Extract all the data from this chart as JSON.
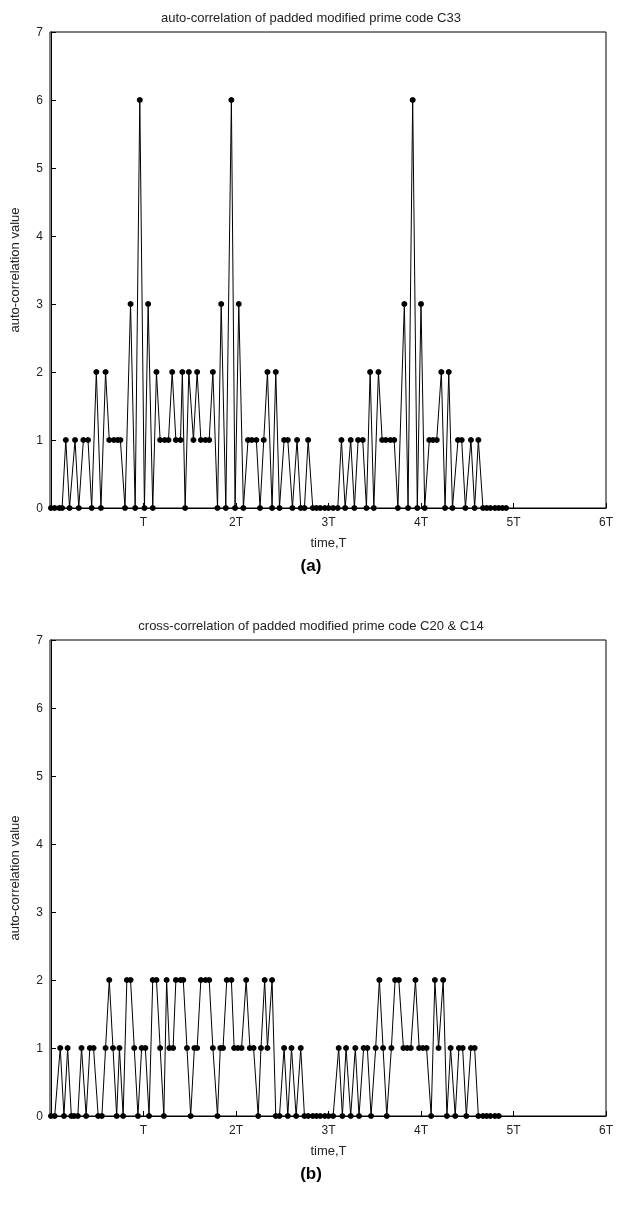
{
  "chart_data": [
    {
      "type": "line",
      "title": "auto-correlation of padded modified prime code C33",
      "subtitle": "(a)",
      "xlabel": "time,T",
      "ylabel": "auto-correlation value",
      "xlim": [
        0,
        6
      ],
      "xticks": [
        {
          "value": 1,
          "label": "T"
        },
        {
          "value": 2,
          "label": "2T"
        },
        {
          "value": 3,
          "label": "3T"
        },
        {
          "value": 4,
          "label": "4T"
        },
        {
          "value": 5,
          "label": "5T"
        },
        {
          "value": 6,
          "label": "6T"
        }
      ],
      "ylim": [
        0,
        7
      ],
      "yticks": [
        0,
        1,
        2,
        3,
        4,
        5,
        6,
        7
      ],
      "grid": false,
      "marker": "circle",
      "line_style": "solid",
      "series": [
        {
          "color": "#000000",
          "x": [
            0.0,
            0.04,
            0.09,
            0.12,
            0.16,
            0.2,
            0.26,
            0.3,
            0.35,
            0.4,
            0.44,
            0.49,
            0.54,
            0.59,
            0.63,
            0.68,
            0.72,
            0.75,
            0.8,
            0.86,
            0.91,
            0.96,
            1.01,
            1.05,
            1.1,
            1.14,
            1.18,
            1.23,
            1.27,
            1.31,
            1.35,
            1.4,
            1.42,
            1.45,
            1.49,
            1.54,
            1.58,
            1.62,
            1.67,
            1.71,
            1.75,
            1.8,
            1.84,
            1.89,
            1.95,
            1.99,
            2.03,
            2.08,
            2.13,
            2.17,
            2.22,
            2.26,
            2.3,
            2.34,
            2.39,
            2.43,
            2.47,
            2.52,
            2.56,
            2.61,
            2.66,
            2.7,
            2.74,
            2.78,
            2.83,
            2.87,
            2.91,
            2.96,
            3.0,
            3.05,
            3.1,
            3.14,
            3.18,
            3.24,
            3.28,
            3.32,
            3.37,
            3.41,
            3.45,
            3.49,
            3.54,
            3.58,
            3.62,
            3.67,
            3.71,
            3.75,
            3.82,
            3.86,
            3.91,
            3.96,
            4.0,
            4.04,
            4.09,
            4.13,
            4.17,
            4.22,
            4.26,
            4.3,
            4.34,
            4.4,
            4.44,
            4.48,
            4.54,
            4.58,
            4.62,
            4.67,
            4.71,
            4.75,
            4.8,
            4.84,
            4.88,
            4.92
          ],
          "values": [
            0,
            0,
            0,
            0,
            1,
            0,
            1,
            0,
            1,
            1,
            0,
            2,
            0,
            2,
            1,
            1,
            1,
            1,
            0,
            3,
            0,
            6,
            0,
            3,
            0,
            2,
            1,
            1,
            1,
            2,
            1,
            1,
            2,
            0,
            2,
            1,
            2,
            1,
            1,
            1,
            2,
            0,
            3,
            0,
            6,
            0,
            3,
            0,
            1,
            1,
            1,
            0,
            1,
            2,
            0,
            2,
            0,
            1,
            1,
            0,
            1,
            0,
            0,
            1,
            0,
            0,
            0,
            0,
            0,
            0,
            0,
            1,
            0,
            1,
            0,
            1,
            1,
            0,
            2,
            0,
            2,
            1,
            1,
            1,
            1,
            0,
            3,
            0,
            6,
            0,
            3,
            0,
            1,
            1,
            1,
            2,
            0,
            2,
            0,
            1,
            1,
            0,
            1,
            0,
            1,
            0,
            0,
            0,
            0,
            0,
            0,
            0
          ]
        }
      ]
    },
    {
      "type": "line",
      "title": "cross-correlation of padded modified prime code C20 & C14",
      "subtitle": "(b)",
      "xlabel": "time,T",
      "ylabel": "auto-correlation value",
      "xlim": [
        0,
        6
      ],
      "xticks": [
        {
          "value": 1,
          "label": "T"
        },
        {
          "value": 2,
          "label": "2T"
        },
        {
          "value": 3,
          "label": "3T"
        },
        {
          "value": 4,
          "label": "4T"
        },
        {
          "value": 5,
          "label": "5T"
        },
        {
          "value": 6,
          "label": "6T"
        }
      ],
      "ylim": [
        0,
        7
      ],
      "yticks": [
        0,
        1,
        2,
        3,
        4,
        5,
        6,
        7
      ],
      "grid": false,
      "marker": "circle",
      "line_style": "solid",
      "series": [
        {
          "color": "#000000",
          "x": [
            0.0,
            0.04,
            0.1,
            0.14,
            0.18,
            0.22,
            0.25,
            0.29,
            0.33,
            0.38,
            0.42,
            0.46,
            0.51,
            0.55,
            0.59,
            0.63,
            0.67,
            0.71,
            0.74,
            0.78,
            0.82,
            0.86,
            0.9,
            0.94,
            0.98,
            1.02,
            1.06,
            1.1,
            1.14,
            1.18,
            1.22,
            1.25,
            1.28,
            1.32,
            1.35,
            1.4,
            1.43,
            1.47,
            1.51,
            1.55,
            1.58,
            1.62,
            1.67,
            1.71,
            1.75,
            1.8,
            1.83,
            1.86,
            1.9,
            1.95,
            1.98,
            2.02,
            2.06,
            2.11,
            2.15,
            2.19,
            2.24,
            2.27,
            2.31,
            2.34,
            2.39,
            2.43,
            2.47,
            2.52,
            2.56,
            2.6,
            2.65,
            2.7,
            2.74,
            2.78,
            2.83,
            2.87,
            2.91,
            2.96,
            3.0,
            3.05,
            3.11,
            3.15,
            3.19,
            3.24,
            3.29,
            3.33,
            3.38,
            3.42,
            3.46,
            3.51,
            3.55,
            3.59,
            3.63,
            3.68,
            3.72,
            3.76,
            3.81,
            3.85,
            3.89,
            3.94,
            3.98,
            4.02,
            4.06,
            4.11,
            4.15,
            4.19,
            4.24,
            4.28,
            4.32,
            4.37,
            4.41,
            4.45,
            4.49,
            4.54,
            4.58,
            4.62,
            4.67,
            4.71,
            4.75,
            4.8,
            4.84
          ],
          "values": [
            0,
            0,
            1,
            0,
            1,
            0,
            0,
            0,
            1,
            0,
            1,
            1,
            0,
            0,
            1,
            2,
            1,
            0,
            1,
            0,
            2,
            2,
            1,
            0,
            1,
            1,
            0,
            2,
            2,
            1,
            0,
            2,
            1,
            1,
            2,
            2,
            2,
            1,
            0,
            1,
            1,
            2,
            2,
            2,
            1,
            0,
            1,
            1,
            2,
            2,
            1,
            1,
            1,
            2,
            1,
            1,
            0,
            1,
            2,
            1,
            2,
            0,
            0,
            1,
            0,
            1,
            0,
            1,
            0,
            0,
            0,
            0,
            0,
            0,
            0,
            0,
            1,
            0,
            1,
            0,
            1,
            0,
            1,
            1,
            0,
            1,
            2,
            1,
            0,
            1,
            2,
            2,
            1,
            1,
            1,
            2,
            1,
            1,
            1,
            0,
            2,
            1,
            2,
            0,
            1,
            0,
            1,
            1,
            0,
            1,
            1,
            0,
            0,
            0,
            0,
            0,
            0
          ]
        }
      ]
    }
  ]
}
